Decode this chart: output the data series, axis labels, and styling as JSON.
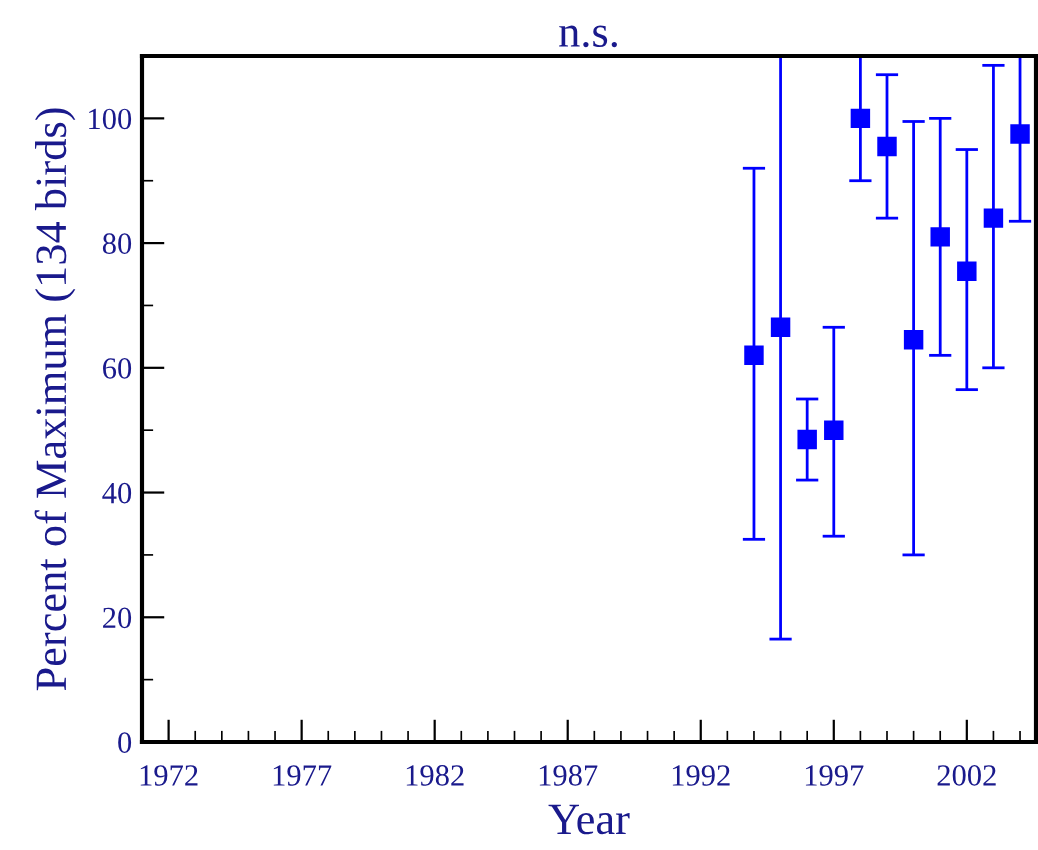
{
  "chart_data": {
    "type": "scatter",
    "title": "n.s.",
    "xlabel": "Year",
    "ylabel": "Percent of Maximum (134 birds)",
    "x": [
      1994,
      1995,
      1996,
      1997,
      1998,
      1999,
      2000,
      2001,
      2002,
      2003,
      2004
    ],
    "series": [
      {
        "color": "#0000ff",
        "values": [
          62,
          66.5,
          48.5,
          50,
          100,
          95.5,
          64.5,
          81,
          75.5,
          84,
          97.5
        ],
        "errors": [
          [
            32.5,
            92
          ],
          [
            16.5,
            110
          ],
          [
            42,
            55
          ],
          [
            33,
            66.5
          ],
          [
            90,
            110
          ],
          [
            84,
            107
          ],
          [
            30,
            99.5
          ],
          [
            62,
            100
          ],
          [
            56.5,
            95
          ],
          [
            60,
            108.5
          ],
          [
            83.5,
            110
          ]
        ]
      }
    ],
    "marker": "square",
    "xlim": [
      1971,
      2004.6
    ],
    "ylim": [
      0,
      110
    ],
    "xticks": [
      1972,
      {
        "value": 1973,
        "label": null
      },
      {
        "value": 1974,
        "label": null
      },
      {
        "value": 1975,
        "label": null
      },
      {
        "value": 1976,
        "label": null
      },
      1977,
      {
        "value": 1978,
        "label": null
      },
      {
        "value": 1979,
        "label": null
      },
      {
        "value": 1980,
        "label": null
      },
      {
        "value": 1981,
        "label": null
      },
      1982,
      {
        "value": 1983,
        "label": null
      },
      {
        "value": 1984,
        "label": null
      },
      {
        "value": 1985,
        "label": null
      },
      {
        "value": 1986,
        "label": null
      },
      1987,
      {
        "value": 1988,
        "label": null
      },
      {
        "value": 1989,
        "label": null
      },
      {
        "value": 1990,
        "label": null
      },
      {
        "value": 1991,
        "label": null
      },
      1992,
      {
        "value": 1993,
        "label": null
      },
      {
        "value": 1994,
        "label": null
      },
      {
        "value": 1995,
        "label": null
      },
      {
        "value": 1996,
        "label": null
      },
      1997,
      {
        "value": 1998,
        "label": null
      },
      {
        "value": 1999,
        "label": null
      },
      {
        "value": 2000,
        "label": null
      },
      {
        "value": 2001,
        "label": null
      },
      2002,
      {
        "value": 2003,
        "label": null
      },
      {
        "value": 2004,
        "label": null
      }
    ],
    "yticks": [
      0,
      {
        "value": 10,
        "label": null
      },
      20,
      {
        "value": 30,
        "label": null
      },
      40,
      {
        "value": 50,
        "label": null
      },
      60,
      {
        "value": 70,
        "label": null
      },
      80,
      {
        "value": 90,
        "label": null
      },
      100
    ],
    "grid": false,
    "legend": false
  }
}
